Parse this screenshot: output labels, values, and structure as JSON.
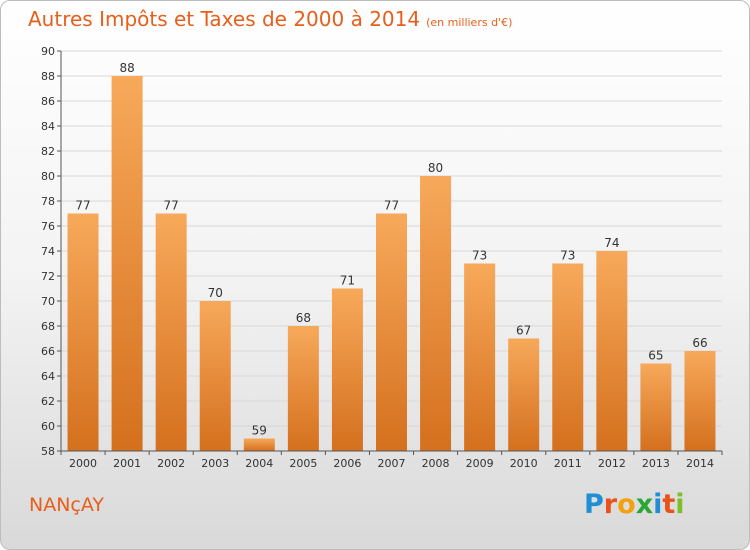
{
  "header": {
    "title": "Autres Impôts et Taxes de 2000 à 2014",
    "unit": "(en milliers d'€)"
  },
  "footer": {
    "commune": "NANçAY",
    "brand": "Proxiti",
    "brand_colors": [
      "#1e8fd6",
      "#e8531a",
      "#f2a20f",
      "#2aa836",
      "#1e8fd6",
      "#e8531a",
      "#7bbf2a"
    ]
  },
  "colors": {
    "bar_top": "#f7a95a",
    "bar_bottom": "#d4701e",
    "grid": "#d8d8d8",
    "axis": "#555555",
    "accent": "#e85e1a"
  },
  "chart_data": {
    "type": "bar",
    "title": "Autres Impôts et Taxes de 2000 à 2014",
    "subtitle": "(en milliers d'€)",
    "xlabel": "",
    "ylabel": "",
    "categories": [
      "2000",
      "2001",
      "2002",
      "2003",
      "2004",
      "2005",
      "2006",
      "2007",
      "2008",
      "2009",
      "2010",
      "2011",
      "2012",
      "2013",
      "2014"
    ],
    "values": [
      77,
      88,
      77,
      70,
      59,
      68,
      71,
      77,
      80,
      73,
      67,
      73,
      74,
      65,
      66
    ],
    "ylim": [
      58,
      90
    ],
    "yticks": [
      "58",
      "60",
      "62",
      "64",
      "66",
      "68",
      "70",
      "72",
      "74",
      "76",
      "78",
      "80",
      "82",
      "84",
      "86",
      "88",
      "90"
    ],
    "grid": true,
    "legend": "none"
  }
}
